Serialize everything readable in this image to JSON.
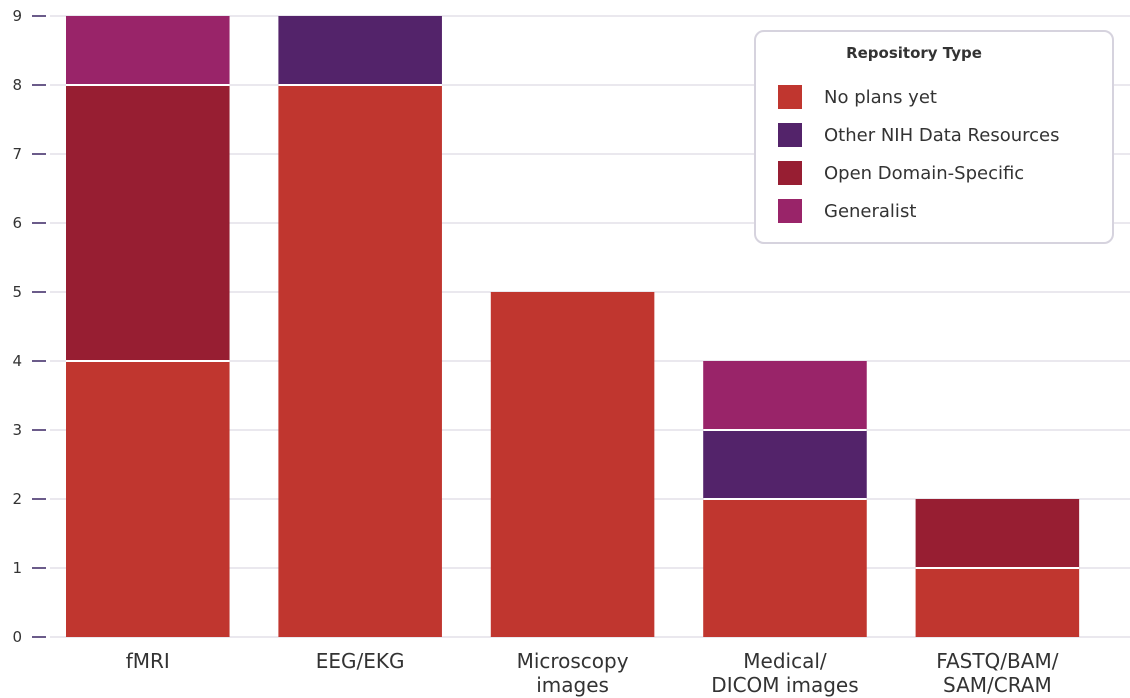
{
  "chart_data": {
    "type": "bar",
    "stacked": true,
    "categories": [
      [
        "fMRI"
      ],
      [
        "EEG/EKG"
      ],
      [
        "Microscopy",
        "images"
      ],
      [
        "Medical/",
        "DICOM images"
      ],
      [
        "FASTQ/BAM/",
        "SAM/CRAM"
      ]
    ],
    "series": [
      {
        "name": "No plans yet",
        "color": "#c0362f",
        "values": [
          4,
          8,
          5,
          2,
          1
        ]
      },
      {
        "name": "Other NIH Data Resources",
        "color": "#53236a",
        "values": [
          0,
          1,
          0,
          1,
          0
        ]
      },
      {
        "name": "Open Domain-Specific",
        "color": "#971e32",
        "values": [
          4,
          0,
          0,
          0,
          1
        ]
      },
      {
        "name": "Generalist",
        "color": "#992469",
        "values": [
          1,
          0,
          0,
          1,
          0
        ]
      }
    ],
    "ylim": [
      0,
      9
    ],
    "yticks": [
      "0",
      "1",
      "2",
      "3",
      "4",
      "5",
      "6",
      "7",
      "8",
      "9"
    ],
    "grid": true,
    "legend_position": "top-right",
    "legend_title": "Repository Type"
  }
}
